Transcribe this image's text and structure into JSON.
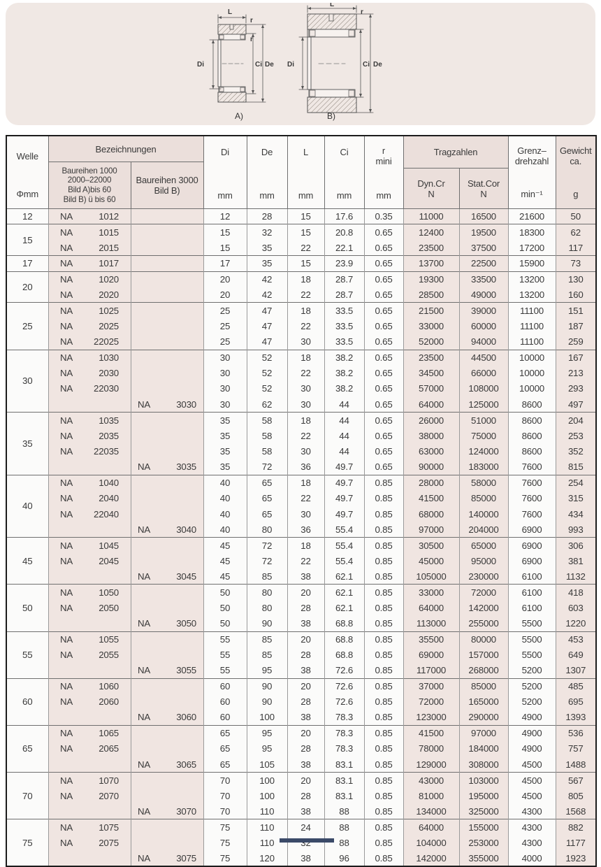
{
  "diagram": {
    "labels": {
      "L": "L",
      "r": "r",
      "Di": "Di",
      "Ci": "Ci",
      "De": "De"
    },
    "view_a_label": "A)",
    "view_b_label": "B)"
  },
  "colors": {
    "panel_bg": "#f0e8e4",
    "header_shade": "#ebdfdb",
    "body_shade": "#f0e5e1",
    "footer_tab": "#3b4a68"
  },
  "table": {
    "header": {
      "welle": "Welle",
      "welle_unit": "Φmm",
      "bezeichnungen": "Bezeichnungen",
      "b1000_l1": "Baureihen 1000",
      "b1000_l2": "2000–22000",
      "b1000_l3": "Bild A)bis 60",
      "b1000_l4": "Bild B) ü bis 60",
      "b3000_l1": "Baureihen 3000",
      "b3000_l2": "Bild B)",
      "di": "Di",
      "de": "De",
      "l": "L",
      "ci": "Ci",
      "r": "r",
      "r_mini": "mini",
      "unit_mm": "mm",
      "tragzahlen": "Tragzahlen",
      "dyn_l1": "Dyn.Cr",
      "dyn_l2": "N",
      "stat_l1": "Stat.Cor",
      "stat_l2": "N",
      "grenz_l1": "Grenz–",
      "grenz_l2": "drehzahl",
      "grenz_unit": "min⁻¹",
      "gewicht_l1": "Gewicht",
      "gewicht_l2": "ca.",
      "gewicht_unit": "g"
    },
    "value_column_keys": [
      "di",
      "de",
      "l",
      "ci",
      "r-mini",
      "dyn-cr",
      "stat-cor",
      "grenzdrehzahl",
      "gewicht"
    ],
    "groups": [
      {
        "welle": "12",
        "rows": [
          {
            "d1": "NA 1012",
            "d3": "",
            "v": [
              12,
              28,
              15,
              17.6,
              0.35,
              11000,
              16500,
              21600,
              50
            ]
          }
        ]
      },
      {
        "welle": "15",
        "rows": [
          {
            "d1": "NA 1015",
            "d3": "",
            "v": [
              15,
              32,
              15,
              20.8,
              0.65,
              12400,
              19500,
              18300,
              62
            ]
          },
          {
            "d1": "NA 2015",
            "d3": "",
            "v": [
              15,
              35,
              22,
              22.1,
              0.65,
              23500,
              37500,
              17200,
              117
            ]
          }
        ]
      },
      {
        "welle": "17",
        "rows": [
          {
            "d1": "NA 1017",
            "d3": "",
            "v": [
              17,
              35,
              15,
              23.9,
              0.65,
              13700,
              22500,
              15900,
              73
            ]
          }
        ]
      },
      {
        "welle": "20",
        "rows": [
          {
            "d1": "NA 1020",
            "d3": "",
            "v": [
              20,
              42,
              18,
              28.7,
              0.65,
              19300,
              33500,
              13200,
              130
            ]
          },
          {
            "d1": "NA 2020",
            "d3": "",
            "v": [
              20,
              42,
              22,
              28.7,
              0.65,
              28500,
              49000,
              13200,
              160
            ]
          }
        ]
      },
      {
        "welle": "25",
        "rows": [
          {
            "d1": "NA 1025",
            "d3": "",
            "v": [
              25,
              47,
              18,
              33.5,
              0.65,
              21500,
              39000,
              11100,
              151
            ]
          },
          {
            "d1": "NA 2025",
            "d3": "",
            "v": [
              25,
              47,
              22,
              33.5,
              0.65,
              33000,
              60000,
              11100,
              187
            ]
          },
          {
            "d1": "NA 22025",
            "d3": "",
            "v": [
              25,
              47,
              30,
              33.5,
              0.65,
              52000,
              94000,
              11100,
              259
            ]
          }
        ]
      },
      {
        "welle": "30",
        "rows": [
          {
            "d1": "NA 1030",
            "d3": "",
            "v": [
              30,
              52,
              18,
              38.2,
              0.65,
              23500,
              44500,
              10000,
              167
            ]
          },
          {
            "d1": "NA 2030",
            "d3": "",
            "v": [
              30,
              52,
              22,
              38.2,
              0.65,
              34500,
              66000,
              10000,
              213
            ]
          },
          {
            "d1": "NA 22030",
            "d3": "",
            "v": [
              30,
              52,
              30,
              38.2,
              0.65,
              57000,
              108000,
              10000,
              293
            ]
          },
          {
            "d1": "",
            "d3": "NA 3030",
            "v": [
              30,
              62,
              30,
              44,
              0.65,
              64000,
              125000,
              8600,
              497
            ]
          }
        ]
      },
      {
        "welle": "35",
        "rows": [
          {
            "d1": "NA 1035",
            "d3": "",
            "v": [
              35,
              58,
              18,
              44,
              0.65,
              26000,
              51000,
              8600,
              204
            ]
          },
          {
            "d1": "NA 2035",
            "d3": "",
            "v": [
              35,
              58,
              22,
              44,
              0.65,
              38000,
              75000,
              8600,
              253
            ]
          },
          {
            "d1": "NA 22035",
            "d3": "",
            "v": [
              35,
              58,
              30,
              44,
              0.65,
              63000,
              124000,
              8600,
              352
            ]
          },
          {
            "d1": "",
            "d3": "NA 3035",
            "v": [
              35,
              72,
              36,
              49.7,
              0.65,
              90000,
              183000,
              7600,
              815
            ]
          }
        ]
      },
      {
        "welle": "40",
        "rows": [
          {
            "d1": "NA 1040",
            "d3": "",
            "v": [
              40,
              65,
              18,
              49.7,
              0.85,
              28000,
              58000,
              7600,
              254
            ]
          },
          {
            "d1": "NA 2040",
            "d3": "",
            "v": [
              40,
              65,
              22,
              49.7,
              0.85,
              41500,
              85000,
              7600,
              315
            ]
          },
          {
            "d1": "NA 22040",
            "d3": "",
            "v": [
              40,
              65,
              30,
              49.7,
              0.85,
              68000,
              140000,
              7600,
              434
            ]
          },
          {
            "d1": "",
            "d3": "NA 3040",
            "v": [
              40,
              80,
              36,
              55.4,
              0.85,
              97000,
              204000,
              6900,
              993
            ]
          }
        ]
      },
      {
        "welle": "45",
        "rows": [
          {
            "d1": "NA 1045",
            "d3": "",
            "v": [
              45,
              72,
              18,
              55.4,
              0.85,
              30500,
              65000,
              6900,
              306
            ]
          },
          {
            "d1": "NA 2045",
            "d3": "",
            "v": [
              45,
              72,
              22,
              55.4,
              0.85,
              45000,
              95000,
              6900,
              381
            ]
          },
          {
            "d1": "",
            "d3": "NA 3045",
            "v": [
              45,
              85,
              38,
              62.1,
              0.85,
              105000,
              230000,
              6100,
              1132
            ]
          }
        ]
      },
      {
        "welle": "50",
        "rows": [
          {
            "d1": "NA 1050",
            "d3": "",
            "v": [
              50,
              80,
              20,
              62.1,
              0.85,
              33000,
              72000,
              6100,
              418
            ]
          },
          {
            "d1": "NA 2050",
            "d3": "",
            "v": [
              50,
              80,
              28,
              62.1,
              0.85,
              64000,
              142000,
              6100,
              603
            ]
          },
          {
            "d1": "",
            "d3": "NA 3050",
            "v": [
              50,
              90,
              38,
              68.8,
              0.85,
              113000,
              255000,
              5500,
              1220
            ]
          }
        ]
      },
      {
        "welle": "55",
        "rows": [
          {
            "d1": "NA 1055",
            "d3": "",
            "v": [
              55,
              85,
              20,
              68.8,
              0.85,
              35500,
              80000,
              5500,
              453
            ]
          },
          {
            "d1": "NA 2055",
            "d3": "",
            "v": [
              55,
              85,
              28,
              68.8,
              0.85,
              69000,
              157000,
              5500,
              649
            ]
          },
          {
            "d1": "",
            "d3": "NA 3055",
            "v": [
              55,
              95,
              38,
              72.6,
              0.85,
              117000,
              268000,
              5200,
              1307
            ]
          }
        ]
      },
      {
        "welle": "60",
        "rows": [
          {
            "d1": "NA 1060",
            "d3": "",
            "v": [
              60,
              90,
              20,
              72.6,
              0.85,
              37000,
              85000,
              5200,
              485
            ]
          },
          {
            "d1": "NA 2060",
            "d3": "",
            "v": [
              60,
              90,
              28,
              72.6,
              0.85,
              72000,
              165000,
              5200,
              695
            ]
          },
          {
            "d1": "",
            "d3": "NA 3060",
            "v": [
              60,
              100,
              38,
              78.3,
              0.85,
              123000,
              290000,
              4900,
              1393
            ]
          }
        ]
      },
      {
        "welle": "65",
        "rows": [
          {
            "d1": "NA 1065",
            "d3": "",
            "v": [
              65,
              95,
              20,
              78.3,
              0.85,
              41500,
              97000,
              4900,
              536
            ]
          },
          {
            "d1": "NA 2065",
            "d3": "",
            "v": [
              65,
              95,
              28,
              78.3,
              0.85,
              78000,
              184000,
              4900,
              757
            ]
          },
          {
            "d1": "",
            "d3": "NA 3065",
            "v": [
              65,
              105,
              38,
              83.1,
              0.85,
              129000,
              308000,
              4500,
              1488
            ]
          }
        ]
      },
      {
        "welle": "70",
        "rows": [
          {
            "d1": "NA 1070",
            "d3": "",
            "v": [
              70,
              100,
              20,
              83.1,
              0.85,
              43000,
              103000,
              4500,
              567
            ]
          },
          {
            "d1": "NA 2070",
            "d3": "",
            "v": [
              70,
              100,
              28,
              83.1,
              0.85,
              81000,
              195000,
              4500,
              805
            ]
          },
          {
            "d1": "",
            "d3": "NA 3070",
            "v": [
              70,
              110,
              38,
              88,
              0.85,
              134000,
              325000,
              4300,
              1568
            ]
          }
        ]
      },
      {
        "welle": "75",
        "rows": [
          {
            "d1": "NA 1075",
            "d3": "",
            "v": [
              75,
              110,
              24,
              88,
              0.85,
              64000,
              155000,
              4300,
              882
            ]
          },
          {
            "d1": "NA 2075",
            "d3": "",
            "v": [
              75,
              110,
              32,
              88,
              0.85,
              104000,
              253000,
              4300,
              1177
            ]
          },
          {
            "d1": "",
            "d3": "NA 3075",
            "v": [
              75,
              120,
              38,
              96,
              0.85,
              142000,
              355000,
              4000,
              1923
            ]
          }
        ]
      }
    ]
  }
}
